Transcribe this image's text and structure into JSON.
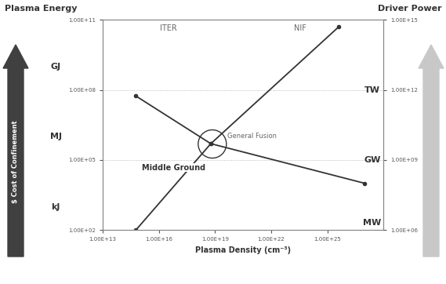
{
  "chart_data": {
    "type": "line",
    "x_label": "Plasma Density (cm⁻³)",
    "log": true,
    "grid": true,
    "xlim": [
      10000000000000.0,
      1e+28
    ],
    "xticks": [
      {
        "value": 10000000000000.0,
        "label": "1.00E+13"
      },
      {
        "value": 1e+16,
        "label": "1.00E+16"
      },
      {
        "value": 1e+19,
        "label": "1.00E+19"
      },
      {
        "value": 1e+22,
        "label": "1.00E+22"
      },
      {
        "value": 1e+25,
        "label": "1.00E+25"
      }
    ],
    "ylim": [
      100.0,
      100000000000.0
    ],
    "yticks": [
      {
        "value": 100.0,
        "label": "1.00E+02"
      },
      {
        "value": 100000.0,
        "label": "1.00E+05"
      },
      {
        "value": 100000000.0,
        "label": "1.00E+08"
      },
      {
        "value": 100000000000.0,
        "label": "1.00E+11"
      }
    ],
    "y2lim": [
      1000000.0,
      1000000000000000.0
    ],
    "y2ticks": [
      {
        "value": 1000000.0,
        "label": "1.00E+06"
      },
      {
        "value": 1000000000.0,
        "label": "1.00E+09"
      },
      {
        "value": 1000000000000.0,
        "label": "1.00E+12"
      },
      {
        "value": 1000000000000000.0,
        "label": "1.00E+15"
      }
    ],
    "series": [
      {
        "name": "Plasma Energy",
        "color": "#333333",
        "marker": "circle",
        "x": [
          600000000000000.0,
          6e+18,
          1e+27
        ],
        "values": [
          55000000.0,
          500000.0,
          10000.0
        ]
      },
      {
        "name": "Driver Power",
        "axis": "y2",
        "color": "#333333",
        "marker": "circle",
        "x": [
          600000000000000.0,
          6e+18,
          4e+25
        ],
        "values": [
          1000000.0,
          5000000000.0,
          500000000000000.0
        ]
      }
    ],
    "annotations": [
      "ITER",
      "NIF",
      "General Fusion",
      "Middle Ground",
      "$ Cost of Confinement",
      "GJ",
      "MJ",
      "kJ",
      "TW",
      "GW",
      "MW"
    ]
  }
}
